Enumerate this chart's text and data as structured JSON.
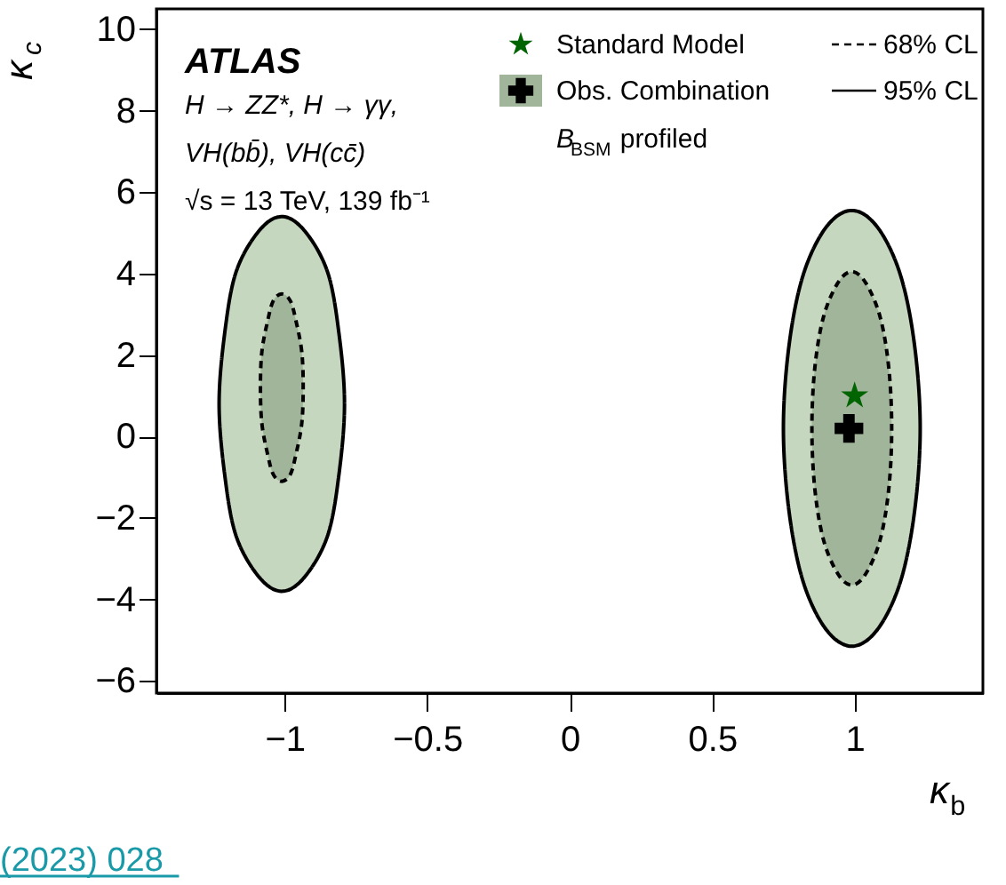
{
  "chart_data": {
    "type": "line",
    "xlabel": "κ$_{b}$",
    "ylabel": "κ$_{c}$",
    "xlim": [
      -1.45,
      1.45
    ],
    "ylim": [
      -6.3,
      10.5
    ],
    "xticks": [
      -1,
      -0.5,
      0,
      0.5,
      1
    ],
    "yticks": [
      -6,
      -4,
      -2,
      0,
      2,
      4,
      6,
      8,
      10
    ],
    "grid": false,
    "legend": "top right",
    "series": [
      {
        "name": "95% CL",
        "type": "area",
        "color": "#c6d7c0",
        "line_style": "solid",
        "x": [
          -0.79,
          -0.81,
          -0.85,
          -0.93,
          -1.01,
          -1.09,
          -1.17,
          -1.21,
          -1.23,
          -1.21,
          -1.17,
          -1.09,
          -1.01,
          -0.93,
          -0.85,
          -0.81
        ],
        "values": [
          0.8,
          2.56,
          4.05,
          5.05,
          5.4,
          5.05,
          4.05,
          2.56,
          0.8,
          -0.96,
          -2.45,
          -3.45,
          -3.8,
          -3.45,
          -2.45,
          -0.96
        ]
      },
      {
        "name": "68% CL",
        "type": "area",
        "color": "#a0b59a",
        "line_style": "dashed",
        "x": [
          -0.935,
          -0.94,
          -0.96,
          -0.98,
          -1.01,
          -1.04,
          -1.06,
          -1.08,
          -1.085,
          -1.08,
          -1.06,
          -1.04,
          -1.01,
          -0.98,
          -0.96,
          -0.94
        ],
        "values": [
          1.2,
          2.08,
          2.83,
          3.33,
          3.5,
          3.33,
          2.83,
          2.08,
          1.2,
          0.32,
          -0.43,
          -0.93,
          -1.1,
          -0.93,
          -0.43,
          0.32
        ]
      },
      {
        "type": "area",
        "color": "#c6d7c0",
        "line_style": "solid",
        "x": [
          1.23,
          1.21,
          1.16,
          1.08,
          0.99,
          0.9,
          0.82,
          0.77,
          0.75,
          0.77,
          0.82,
          0.9,
          0.99,
          1.08,
          1.16,
          1.21
        ],
        "values": [
          0.2,
          2.25,
          3.98,
          5.14,
          5.55,
          5.14,
          3.98,
          2.25,
          0.2,
          -1.85,
          -3.58,
          -4.74,
          -5.15,
          -4.74,
          -3.58,
          -1.85
        ]
      },
      {
        "type": "area",
        "color": "#a0b59a",
        "line_style": "dashed",
        "x": [
          1.13,
          1.12,
          1.09,
          1.04,
          0.99,
          0.94,
          0.89,
          0.86,
          0.85,
          0.86,
          0.89,
          0.94,
          0.99,
          1.04,
          1.09,
          1.12
        ],
        "values": [
          0.2,
          1.67,
          2.92,
          3.76,
          4.05,
          3.76,
          2.92,
          1.67,
          0.2,
          -1.27,
          -2.52,
          -3.36,
          -3.65,
          -3.36,
          -2.52,
          -1.27
        ]
      },
      {
        "name": "Standard Model",
        "type": "scatter",
        "marker": "star",
        "color": "#006400",
        "x": [
          1
        ],
        "values": [
          1
        ]
      },
      {
        "name": "Obs. Combination",
        "type": "scatter",
        "marker": "cross",
        "color": "#000000",
        "x": [
          0.98
        ],
        "values": [
          0.2
        ]
      }
    ],
    "annotations": [
      "ATLAS",
      "H → ZZ*, H → γγ,",
      "VH(bb̄), VH(cc̄)",
      "√s = 13 TeV, 139 fb⁻¹",
      "B$_{BSM}$ profiled",
      "(2023) 028"
    ]
  }
}
